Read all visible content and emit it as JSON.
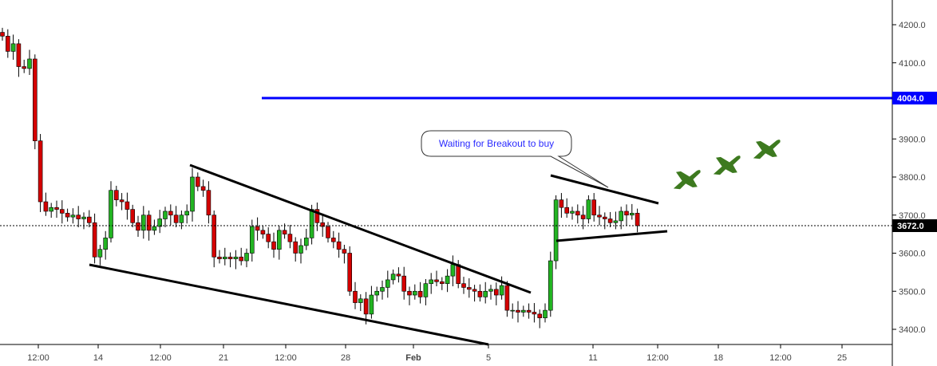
{
  "chart_data": {
    "type": "candlestick",
    "y_axis": {
      "ticks": [
        "4200.0",
        "4100.0",
        "3900.0",
        "3800.0",
        "3700.0",
        "3600.0",
        "3500.0",
        "3400.0"
      ],
      "range": [
        3350,
        4280
      ]
    },
    "x_axis": {
      "ticks": [
        "12:00",
        "14",
        "12:00",
        "21",
        "12:00",
        "28",
        "Feb",
        "5",
        "11",
        "12:00",
        "18",
        "12:00",
        "25"
      ]
    },
    "closes": [
      4170,
      4130,
      4150,
      4090,
      4085,
      4110,
      3895,
      3735,
      3710,
      3720,
      3715,
      3705,
      3695,
      3700,
      3690,
      3695,
      3680,
      3590,
      3610,
      3640,
      3765,
      3740,
      3735,
      3715,
      3680,
      3660,
      3700,
      3660,
      3670,
      3690,
      3710,
      3700,
      3680,
      3700,
      3710,
      3800,
      3775,
      3765,
      3700,
      3590,
      3585,
      3590,
      3585,
      3590,
      3580,
      3600,
      3670,
      3660,
      3650,
      3630,
      3610,
      3660,
      3650,
      3630,
      3600,
      3620,
      3640,
      3715,
      3680,
      3670,
      3640,
      3630,
      3610,
      3600,
      3500,
      3470,
      3480,
      3440,
      3490,
      3500,
      3510,
      3530,
      3545,
      3540,
      3500,
      3490,
      3500,
      3485,
      3520,
      3530,
      3525,
      3520,
      3540,
      3570,
      3520,
      3510,
      3505,
      3500,
      3485,
      3500,
      3505,
      3490,
      3515,
      3450,
      3450,
      3445,
      3450,
      3445,
      3440,
      3430,
      3450,
      3580,
      3740,
      3720,
      3705,
      3710,
      3700,
      3690,
      3740,
      3700,
      3695,
      3690,
      3680,
      3685,
      3710,
      3700,
      3705,
      3672
    ],
    "first_open": 4180,
    "horizontal_level": {
      "value": 4004.0,
      "label": "4004.0",
      "color": "#0000ff"
    },
    "current_price": {
      "value": 3672.0,
      "label": "3672.0"
    },
    "annotation": "Waiting for Breakout to buy",
    "colors": {
      "up": "#22b422",
      "down": "#d40000",
      "annotation_text": "#2a2aff",
      "jets": "#3d7a1f"
    }
  }
}
